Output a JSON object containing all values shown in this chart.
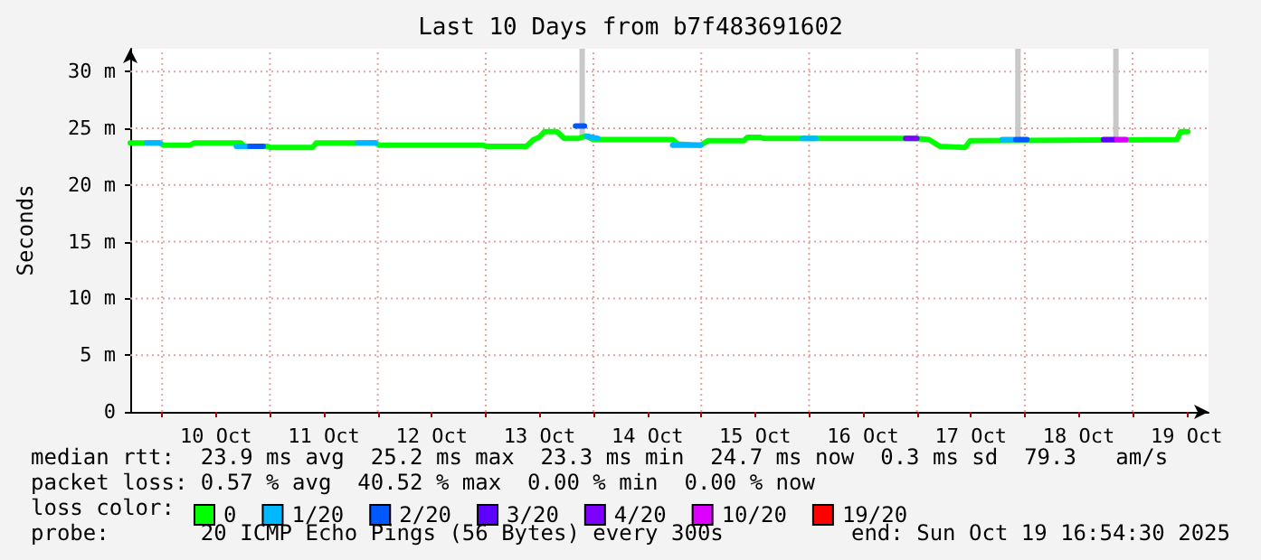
{
  "chart_data": {
    "type": "line",
    "title": "Last 10 Days from b7f483691602",
    "ylabel": "Seconds",
    "legend_title": "loss color:",
    "legend": "bottom",
    "grid": true,
    "marker": "none",
    "line_style": "solid",
    "xlim": [
      "2025-10-09T16:54",
      "2025-10-19T16:54"
    ],
    "xticks": [
      {
        "value": "2025-10-10T00:00",
        "label": null
      },
      {
        "value": "2025-10-10T12:00",
        "label": "10 Oct"
      },
      {
        "value": "2025-10-11T00:00",
        "label": null
      },
      {
        "value": "2025-10-11T12:00",
        "label": "11 Oct"
      },
      {
        "value": "2025-10-12T00:00",
        "label": null
      },
      {
        "value": "2025-10-12T12:00",
        "label": "12 Oct"
      },
      {
        "value": "2025-10-13T00:00",
        "label": null
      },
      {
        "value": "2025-10-13T12:00",
        "label": "13 Oct"
      },
      {
        "value": "2025-10-14T00:00",
        "label": null
      },
      {
        "value": "2025-10-14T12:00",
        "label": "14 Oct"
      },
      {
        "value": "2025-10-15T00:00",
        "label": null
      },
      {
        "value": "2025-10-15T12:00",
        "label": "15 Oct"
      },
      {
        "value": "2025-10-16T00:00",
        "label": null
      },
      {
        "value": "2025-10-16T12:00",
        "label": "16 Oct"
      },
      {
        "value": "2025-10-17T00:00",
        "label": null
      },
      {
        "value": "2025-10-17T12:00",
        "label": "17 Oct"
      },
      {
        "value": "2025-10-18T00:00",
        "label": null
      },
      {
        "value": "2025-10-18T12:00",
        "label": "18 Oct"
      },
      {
        "value": "2025-10-19T00:00",
        "label": null
      },
      {
        "value": "2025-10-19T12:00",
        "label": "19 Oct"
      }
    ],
    "ylim": [
      0,
      32
    ],
    "yticks": [
      0,
      {
        "value": 5,
        "label": "5 m"
      },
      {
        "value": 10,
        "label": "10 m"
      },
      {
        "value": 15,
        "label": "15 m"
      },
      {
        "value": 20,
        "label": "20 m"
      },
      {
        "value": 25,
        "label": "25 m"
      },
      {
        "value": 30,
        "label": "30 m"
      }
    ],
    "series": [
      {
        "type": "bar",
        "color": "#c8c8c8",
        "x": [
          "2025-10-13T21:29",
          "2025-10-17T22:29",
          "2025-10-18T20:17"
        ],
        "base": [
          24.1,
          24.0,
          24.0
        ],
        "values": [
          7.9,
          8.0,
          8.0
        ]
      },
      {
        "name": "0",
        "color": "#00ff00",
        "x": [
          "2025-10-09T16:54",
          "2025-10-09T23:29",
          "2025-10-10T00:17",
          "2025-10-10T06:17",
          "2025-10-10T07:05",
          "2025-10-10T17:30",
          "2025-10-10T18:17",
          "2025-10-10T23:29",
          "2025-10-11T00:17",
          "2025-10-11T09:29",
          "2025-10-11T10:17",
          "2025-10-11T23:29",
          "2025-10-12T00:17",
          "2025-10-12T23:29",
          "2025-10-13T00:17",
          "2025-10-13T09:05",
          "2025-10-13T10:41",
          "2025-10-13T11:53",
          "2025-10-13T13:05",
          "2025-10-13T15:53",
          "2025-10-13T17:29",
          "2025-10-13T20:41",
          "2025-10-13T22:17",
          "2025-10-14T00:00",
          "2025-10-14T17:37",
          "2025-10-14T18:49",
          "2025-10-14T23:53",
          "2025-10-15T01:29",
          "2025-10-15T09:29",
          "2025-10-15T10:17",
          "2025-10-15T13:05",
          "2025-10-15T13:53",
          "2025-10-16T23:29",
          "2025-10-17T02:41",
          "2025-10-17T05:05",
          "2025-10-17T10:41",
          "2025-10-17T11:53",
          "2025-10-19T09:53",
          "2025-10-19T10:41",
          "2025-10-19T12:17"
        ],
        "values": [
          23.7,
          23.7,
          23.5,
          23.5,
          23.7,
          23.7,
          23.4,
          23.4,
          23.3,
          23.3,
          23.7,
          23.7,
          23.5,
          23.5,
          23.4,
          23.4,
          24.0,
          24.2,
          24.7,
          24.7,
          24.1,
          24.1,
          24.3,
          24.0,
          24.0,
          23.6,
          23.5,
          23.9,
          23.9,
          24.2,
          24.2,
          24.1,
          24.1,
          24.0,
          23.4,
          23.3,
          23.9,
          24.0,
          24.7,
          24.7
        ]
      },
      {
        "name": "1/20",
        "color": "#00b8ff",
        "x": [
          "2025-10-09T20:30",
          "2025-10-09T23:30",
          "2025-10-10T03:00",
          "2025-10-10T16:30",
          "2025-10-10T19:00",
          "2025-10-11T03:00",
          "2025-10-11T19:30",
          "2025-10-11T23:30",
          "2025-10-12T12:00",
          "2025-10-13T22:30",
          "2025-10-14T01:00",
          "2025-10-14T06:00",
          "2025-10-14T17:37",
          "2025-10-14T23:53",
          "2025-10-15T12:00",
          "2025-10-15T22:30",
          "2025-10-16T01:30",
          "2025-10-17T00:00",
          "2025-10-17T19:00",
          "2025-10-17T21:30"
        ],
        "values": [
          23.7,
          23.7,
          null,
          23.4,
          23.4,
          null,
          23.7,
          23.7,
          null,
          24.3,
          24.1,
          null,
          23.5,
          23.5,
          null,
          24.1,
          24.1,
          null,
          24.0,
          24.0
        ]
      },
      {
        "name": "2/20",
        "color": "#0059ff",
        "x": [
          "2025-10-10T19:30",
          "2025-10-10T22:30",
          "2025-10-11T12:00",
          "2025-10-13T20:00",
          "2025-10-13T22:00",
          "2025-10-15T00:00",
          "2025-10-17T22:00",
          "2025-10-18T00:30"
        ],
        "values": [
          23.4,
          23.4,
          null,
          25.2,
          25.2,
          null,
          24.0,
          24.0
        ]
      },
      {
        "name": "3/20",
        "color": "#5e00ff",
        "x": [
          "2025-10-18T17:30",
          "2025-10-18T20:00"
        ],
        "values": [
          24.0,
          24.0
        ]
      },
      {
        "name": "4/20",
        "color": "#7e00ff",
        "x": [
          "2025-10-16T21:30",
          "2025-10-16T23:59"
        ],
        "values": [
          24.1,
          24.1
        ]
      },
      {
        "name": "10/20",
        "color": "#dd00ff",
        "x": [
          "2025-10-18T20:30",
          "2025-10-18T22:30"
        ],
        "values": [
          24.0,
          24.0
        ]
      },
      {
        "name": "19/20",
        "color": "#ff0000"
      }
    ],
    "annotations": [
      "median rtt:  23.9 ms avg  25.2 ms max  23.3 ms min  24.7 ms now  0.3 ms sd  79.3   am/s",
      "packet loss: 0.57 % avg  40.52 % max  0.00 % min  0.00 % now",
      "probe:       20 ICMP Echo Pings (56 Bytes) every 300s",
      "end: Sun Oct 19 16:54:30 2025"
    ]
  }
}
